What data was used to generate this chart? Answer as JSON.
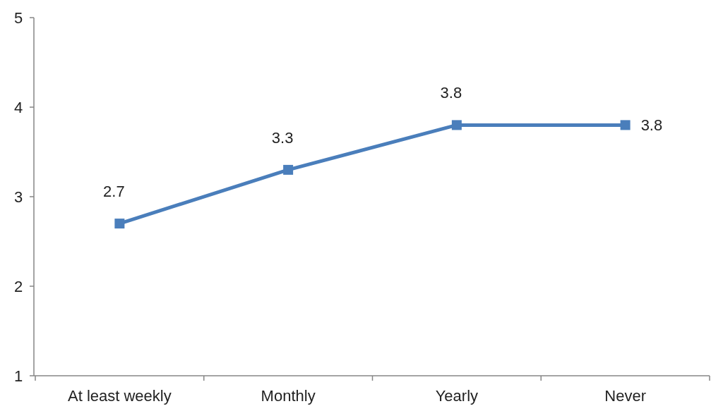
{
  "chart_data": {
    "type": "line",
    "categories": [
      "At least weekly",
      "Monthly",
      "Yearly",
      "Never"
    ],
    "series": [
      {
        "color": "#4a7ebb",
        "values": [
          2.7,
          3.3,
          3.8,
          3.8
        ]
      }
    ],
    "ylim": [
      1,
      5
    ],
    "yticks": [
      1,
      2,
      3,
      4,
      5
    ],
    "grid": false,
    "marker": "square",
    "line_style": "solid",
    "data_labels": true
  }
}
